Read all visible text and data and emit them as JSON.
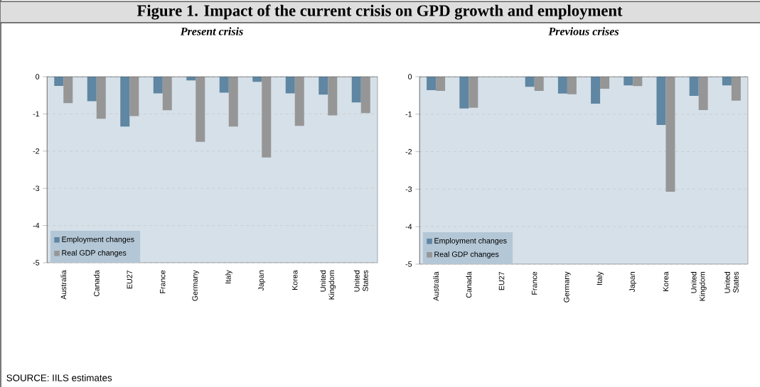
{
  "chart_data": [
    {
      "type": "bar",
      "title": "Figure 1. Impact of the current crisis on GPD growth and employment",
      "subtitle": "Present crisis",
      "annotations": [
        "SOURCE: IILS estimates"
      ],
      "categories": [
        "Australia",
        "Canada",
        "EU27",
        "France",
        "Germany",
        "Italy",
        "Japan",
        "Korea",
        "United Kingdom",
        "United States"
      ],
      "series": [
        {
          "name": "Employment changes",
          "color": "#5f86a2",
          "values": [
            -0.25,
            -0.66,
            -1.34,
            -0.45,
            -0.1,
            -0.43,
            -0.14,
            -0.45,
            -0.48,
            -0.69
          ]
        },
        {
          "name": "Real GDP changes",
          "color": "#969696",
          "values": [
            -0.71,
            -1.13,
            -1.06,
            -0.9,
            -1.75,
            -1.34,
            -2.17,
            -1.32,
            -1.04,
            -0.98
          ]
        }
      ],
      "ylim": [
        -5,
        0
      ],
      "yticks": [
        0,
        -1,
        -2,
        -3,
        -4,
        -5
      ],
      "grid": "y",
      "legend": "bottom left"
    },
    {
      "type": "bar",
      "subtitle": "Previous crises",
      "categories": [
        "Australia",
        "Canada",
        "EU27",
        "France",
        "Germany",
        "Italy",
        "Japan",
        "Korea",
        "United Kingdom",
        "United States"
      ],
      "series": [
        {
          "name": "Employment changes",
          "color": "#5f86a2",
          "values": [
            -0.36,
            -0.85,
            null,
            -0.27,
            -0.45,
            -0.72,
            -0.23,
            -1.29,
            -0.51,
            -0.23
          ]
        },
        {
          "name": "Real GDP changes",
          "color": "#969696",
          "values": [
            -0.38,
            -0.83,
            null,
            -0.38,
            -0.47,
            -0.32,
            -0.25,
            -3.07,
            -0.89,
            -0.64
          ]
        }
      ],
      "ylim": [
        -5,
        0
      ],
      "yticks": [
        0,
        -1,
        -2,
        -3,
        -4,
        -5
      ],
      "grid": "y",
      "legend": "bottom left"
    }
  ]
}
